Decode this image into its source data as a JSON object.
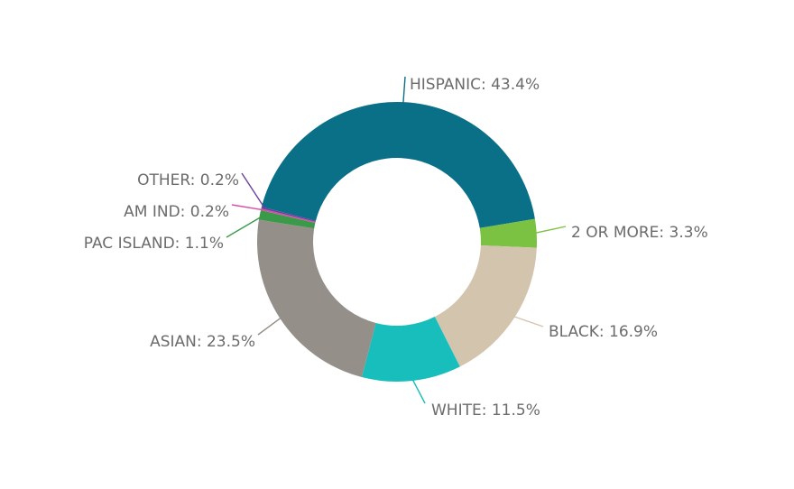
{
  "chart_data": {
    "type": "pie",
    "donut": true,
    "title": "",
    "slices": [
      {
        "label": "HISPANIC",
        "value": 43.4,
        "display": "HISPANIC: 43.4%",
        "color": "#0a7088"
      },
      {
        "label": "2 OR MORE",
        "value": 3.3,
        "display": "2 OR MORE: 3.3%",
        "color": "#7cc242"
      },
      {
        "label": "BLACK",
        "value": 16.9,
        "display": "BLACK: 16.9%",
        "color": "#d3c4ad"
      },
      {
        "label": "WHITE",
        "value": 11.5,
        "display": "WHITE: 11.5%",
        "color": "#17bebb"
      },
      {
        "label": "ASIAN",
        "value": 23.5,
        "display": "ASIAN: 23.5%",
        "color": "#948f89"
      },
      {
        "label": "PAC ISLAND",
        "value": 1.1,
        "display": "PAC ISLAND: 1.1%",
        "color": "#3a9a4a"
      },
      {
        "label": "AM IND",
        "value": 0.2,
        "display": "AM IND: 0.2%",
        "color": "#d64fa6"
      },
      {
        "label": "OTHER",
        "value": 0.2,
        "display": "OTHER: 0.2%",
        "color": "#6b3fa0"
      }
    ]
  }
}
